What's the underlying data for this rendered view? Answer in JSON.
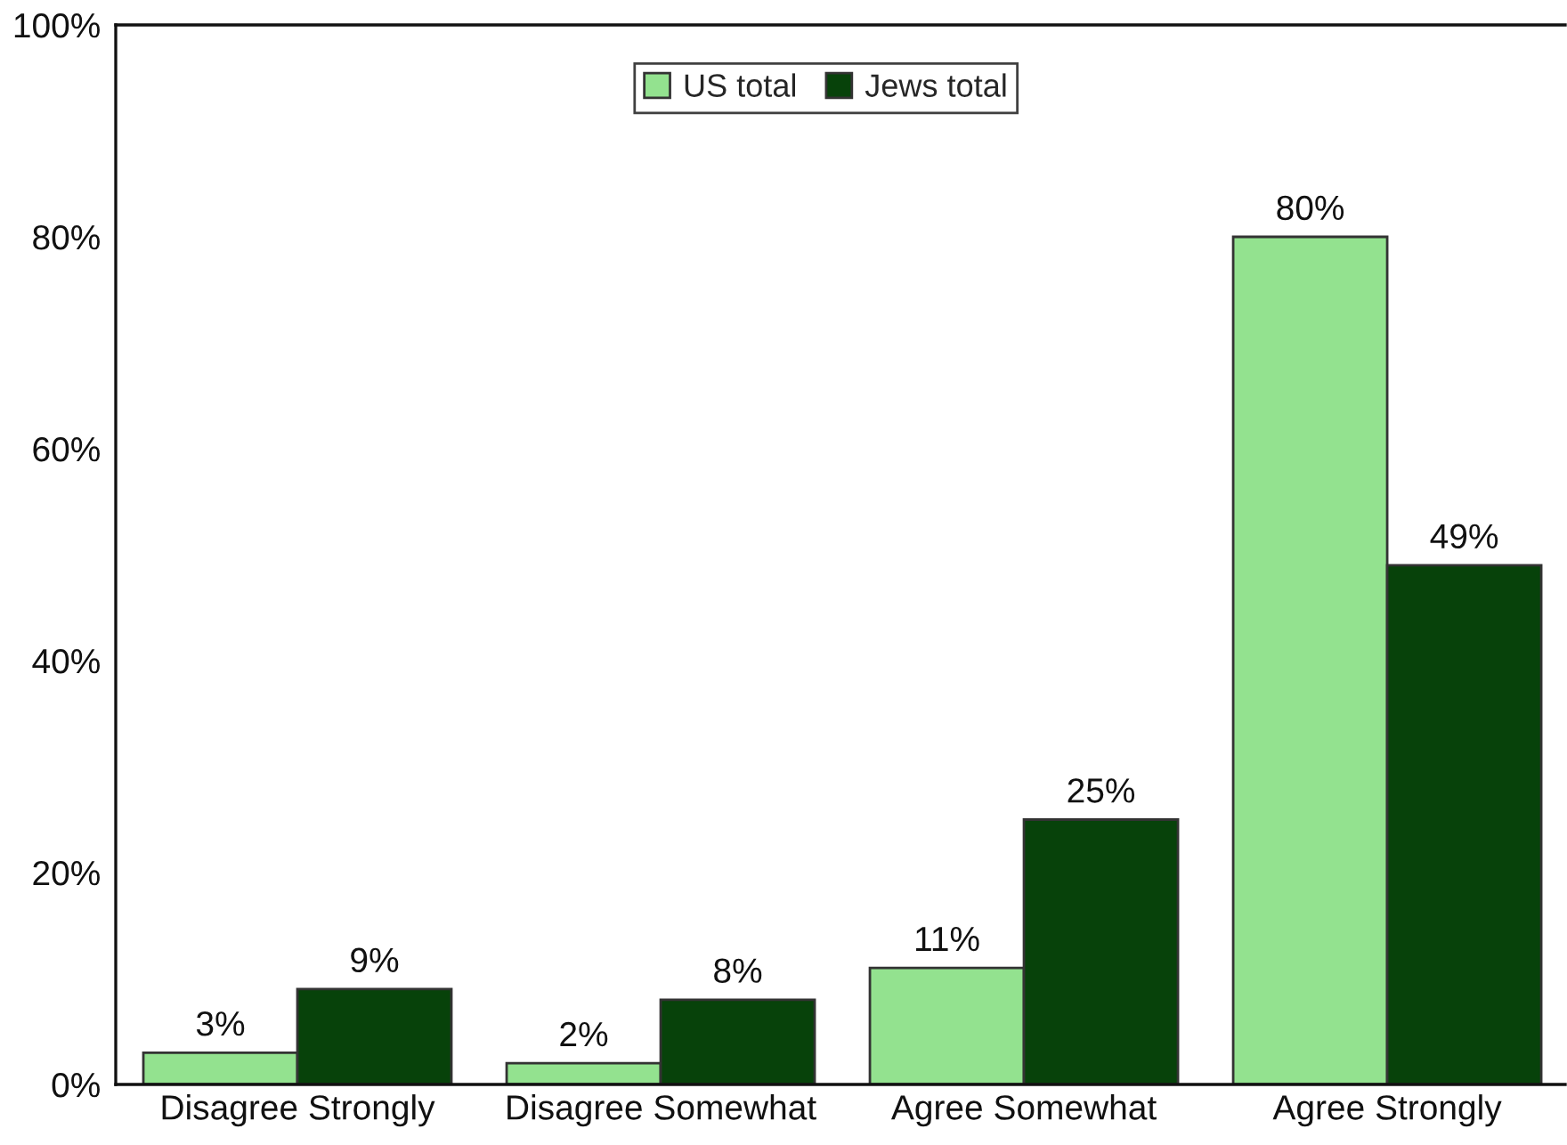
{
  "chart_data": {
    "type": "bar",
    "categories": [
      "Disagree Strongly",
      "Disagree Somewhat",
      "Agree Somewhat",
      "Agree Strongly"
    ],
    "series": [
      {
        "name": "US total",
        "color": "#93e28f",
        "values": [
          3,
          2,
          11,
          80
        ],
        "value_labels": [
          "3%",
          "2%",
          "11%",
          "80%"
        ]
      },
      {
        "name": "Jews total",
        "color": "#07420a",
        "values": [
          9,
          8,
          25,
          49
        ],
        "value_labels": [
          "9%",
          "8%",
          "25%",
          "49%"
        ]
      }
    ],
    "ylim": [
      0,
      100
    ],
    "yticks": [
      {
        "value": 0,
        "label": "0%"
      },
      {
        "value": 20,
        "label": "20%"
      },
      {
        "value": 40,
        "label": "40%"
      },
      {
        "value": 60,
        "label": "60%"
      },
      {
        "value": 80,
        "label": "80%"
      },
      {
        "value": 100,
        "label": "100%"
      }
    ],
    "legend": "top"
  }
}
